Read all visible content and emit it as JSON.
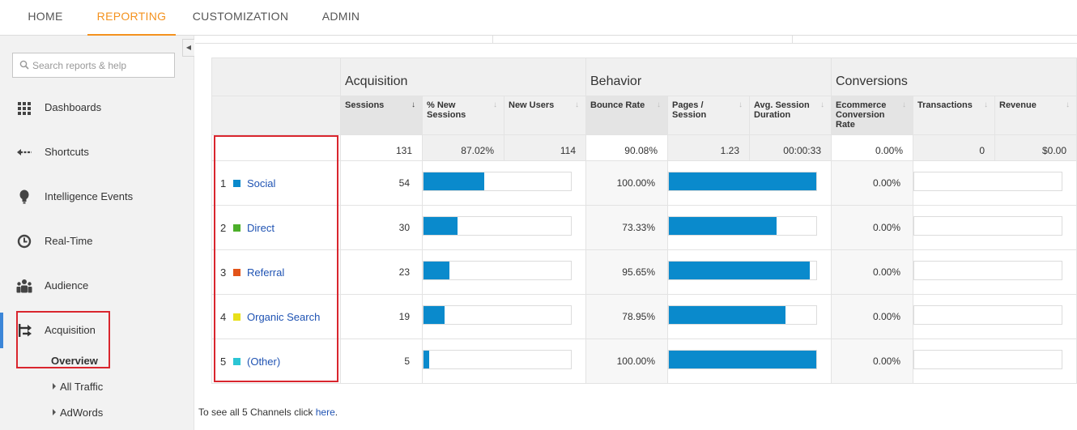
{
  "topnav": {
    "tabs": [
      {
        "label": "HOME"
      },
      {
        "label": "REPORTING"
      },
      {
        "label": "CUSTOMIZATION"
      },
      {
        "label": "ADMIN"
      }
    ],
    "active_color": "#f4921e"
  },
  "sidebar": {
    "search_placeholder": "Search reports & help",
    "items": [
      {
        "label": "Dashboards",
        "icon": "grid-icon"
      },
      {
        "label": "Shortcuts",
        "icon": "shortcut-arrow-icon"
      },
      {
        "label": "Intelligence Events",
        "icon": "lightbulb-icon"
      },
      {
        "label": "Real-Time",
        "icon": "clock-icon"
      },
      {
        "label": "Audience",
        "icon": "people-icon"
      },
      {
        "label": "Acquisition",
        "icon": "acquisition-arrows-icon"
      }
    ],
    "sub_items": [
      {
        "label": "Overview"
      },
      {
        "label": "All Traffic"
      },
      {
        "label": "AdWords"
      }
    ]
  },
  "report": {
    "groups": [
      "Acquisition",
      "Behavior",
      "Conversions"
    ],
    "columns": [
      {
        "label": "Sessions"
      },
      {
        "label": "% New Sessions"
      },
      {
        "label": "New Users"
      },
      {
        "label": "Bounce Rate"
      },
      {
        "label": "Pages / Session"
      },
      {
        "label": "Avg. Session Duration"
      },
      {
        "label": "Ecommerce Conversion Rate"
      },
      {
        "label": "Transactions"
      },
      {
        "label": "Revenue"
      }
    ],
    "totals": {
      "sessions": "131",
      "new_sessions": "87.02%",
      "new_users": "114",
      "bounce_rate": "90.08%",
      "pages_session": "1.23",
      "duration": "00:00:33",
      "conversion": "0.00%",
      "transactions": "0",
      "revenue": "$0.00"
    },
    "rows": [
      {
        "index": "1",
        "channel": "Social",
        "color": "#0a8acc",
        "sessions": "54",
        "sessions_fraction": 0.412,
        "bounce_rate": "100.00%",
        "bounce_fraction": 1.0,
        "conversion": "0.00%"
      },
      {
        "index": "2",
        "channel": "Direct",
        "color": "#4caf2a",
        "sessions": "30",
        "sessions_fraction": 0.229,
        "bounce_rate": "73.33%",
        "bounce_fraction": 0.7333,
        "conversion": "0.00%"
      },
      {
        "index": "3",
        "channel": "Referral",
        "color": "#e35419",
        "sessions": "23",
        "sessions_fraction": 0.176,
        "bounce_rate": "95.65%",
        "bounce_fraction": 0.9565,
        "conversion": "0.00%"
      },
      {
        "index": "4",
        "channel": "Organic Search",
        "color": "#e8e01a",
        "sessions": "19",
        "sessions_fraction": 0.145,
        "bounce_rate": "78.95%",
        "bounce_fraction": 0.7895,
        "conversion": "0.00%"
      },
      {
        "index": "5",
        "channel": "(Other)",
        "color": "#2bc5d4",
        "sessions": "5",
        "sessions_fraction": 0.038,
        "bounce_rate": "100.00%",
        "bounce_fraction": 1.0,
        "conversion": "0.00%"
      }
    ]
  },
  "footer": {
    "text": "To see all 5 Channels click ",
    "link": "here",
    "suffix": "."
  }
}
